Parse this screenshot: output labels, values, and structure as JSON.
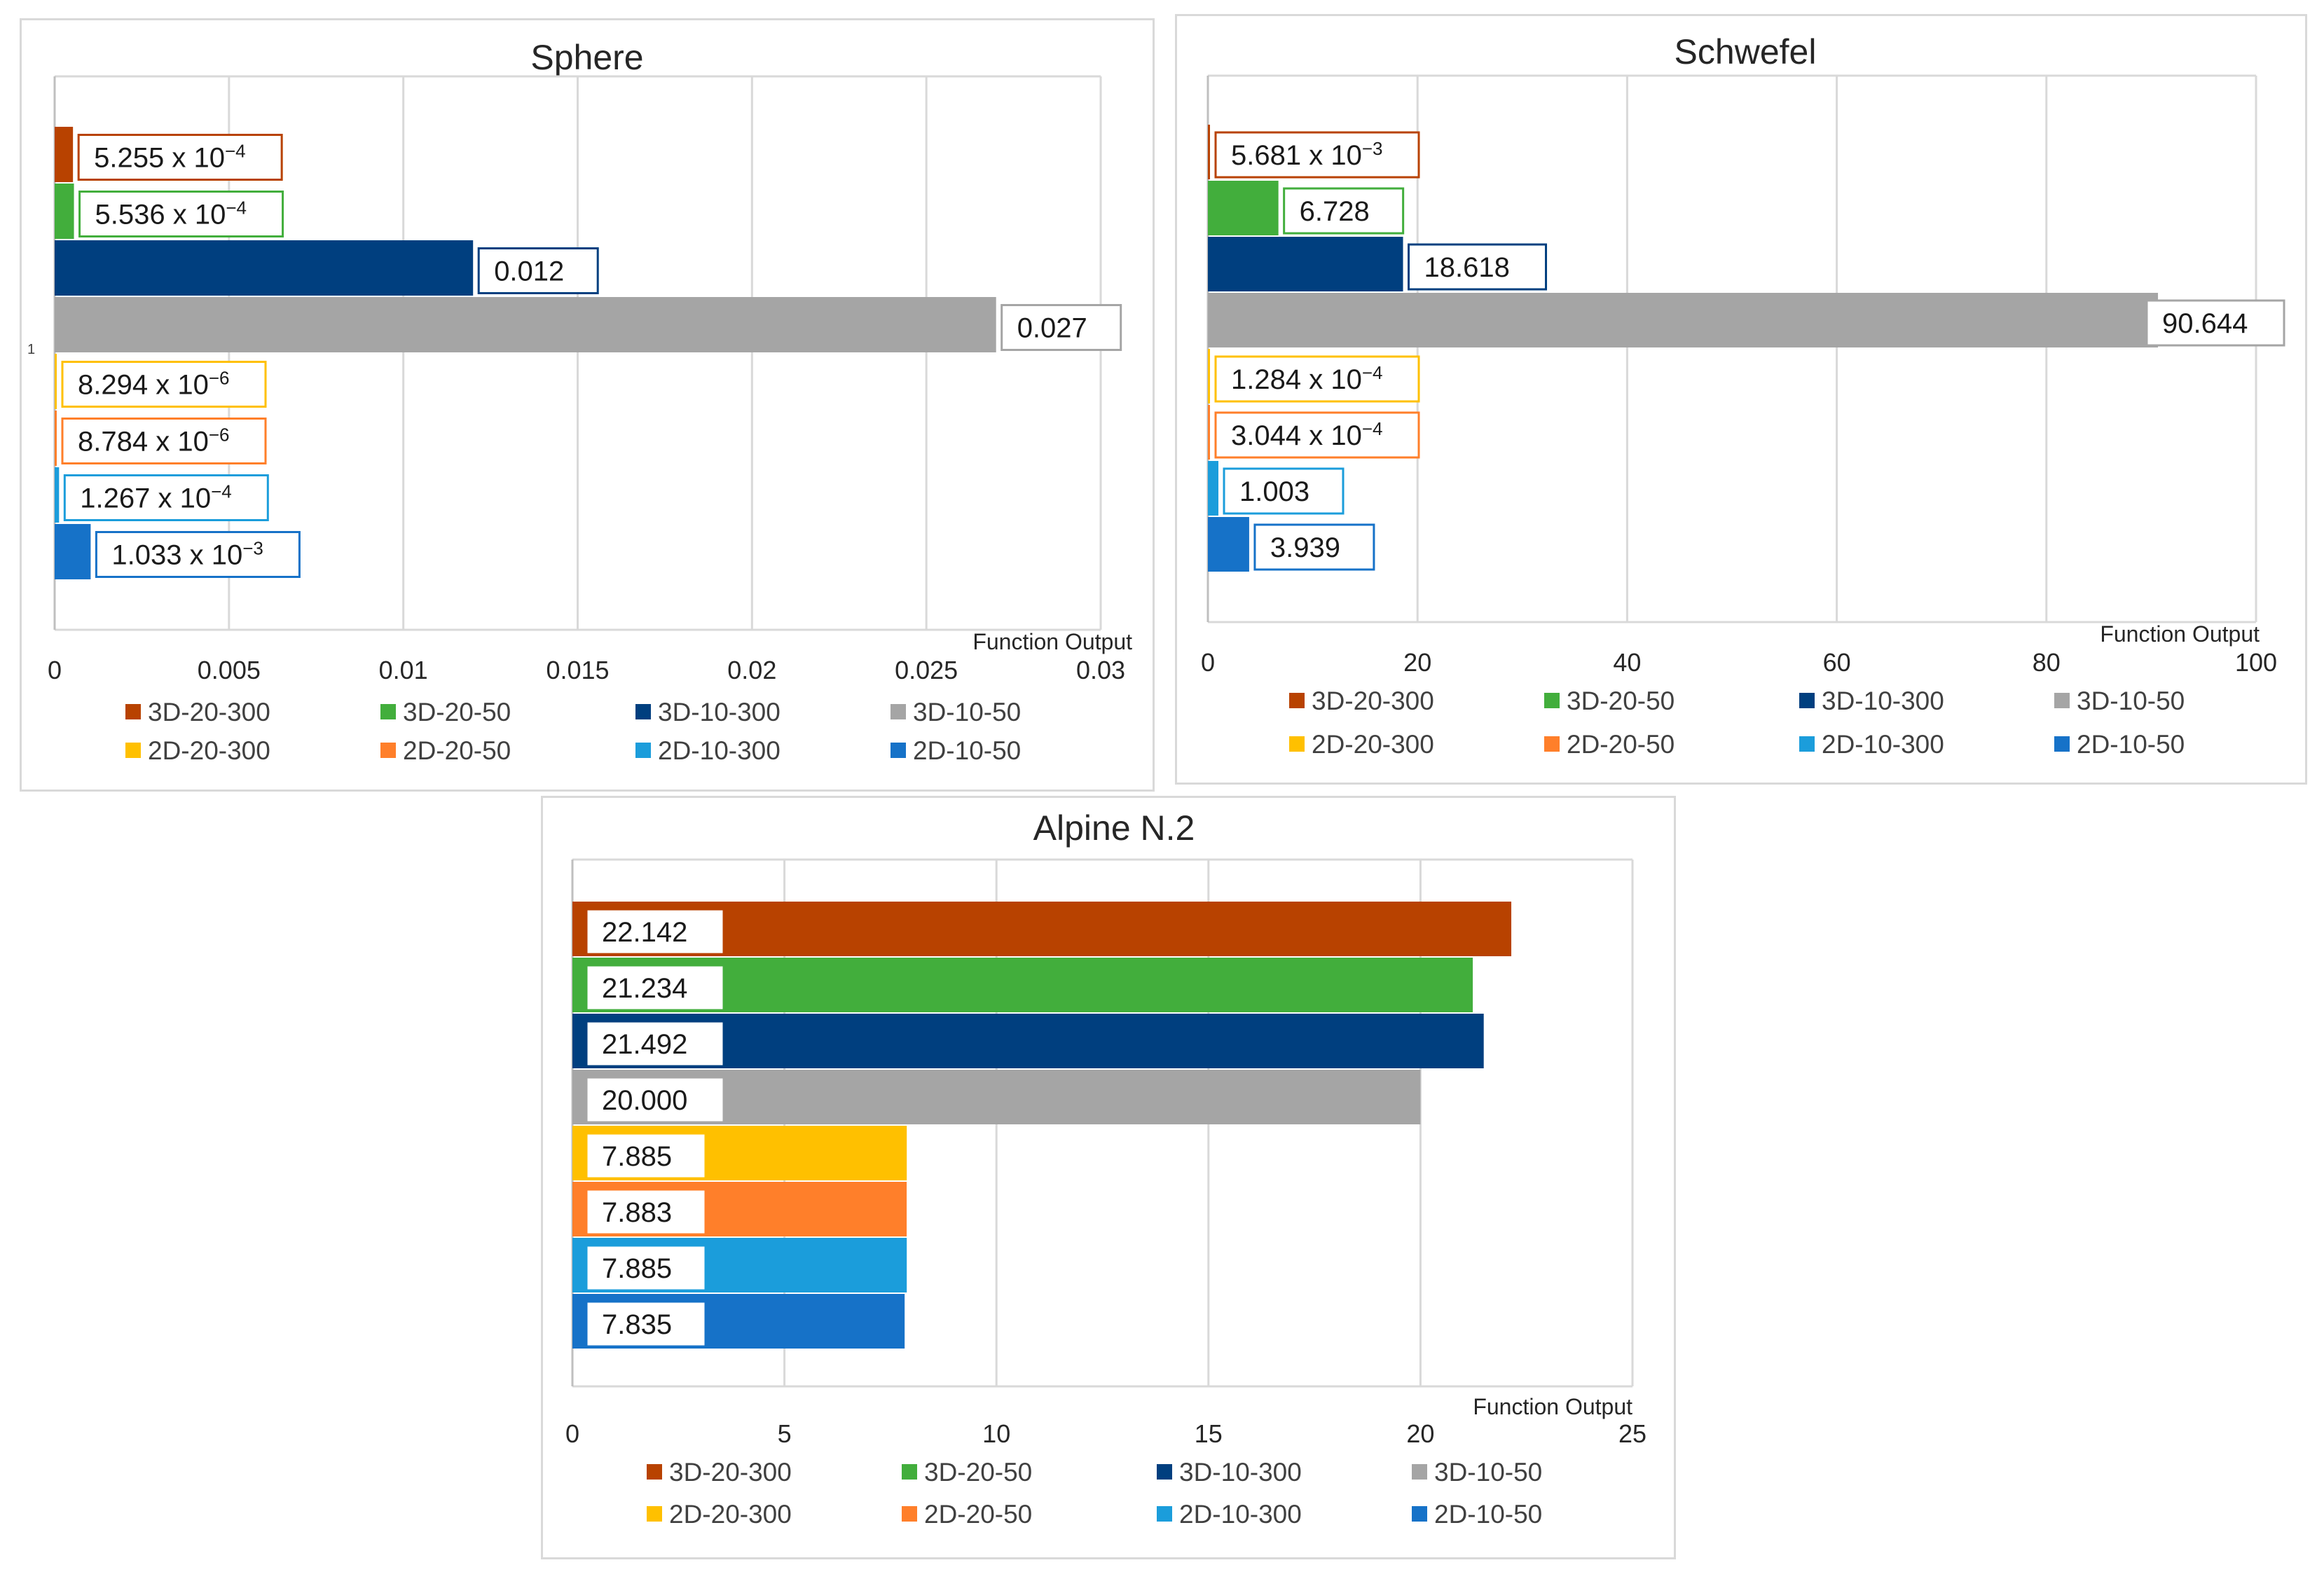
{
  "chart_data": [
    {
      "type": "bar",
      "orientation": "horizontal",
      "title": "Sphere",
      "xlabel": "Function Output",
      "ylabel": "",
      "categories": [
        "1"
      ],
      "xlim": [
        0,
        0.03
      ],
      "xticks": [
        "0",
        "0.005",
        "0.01",
        "0.015",
        "0.02",
        "0.025",
        "0.03"
      ],
      "grid": true,
      "legend_position": "bottom",
      "series": [
        {
          "name": "3D-20-300",
          "color": "#B84200",
          "value": 0.0005255,
          "label": "5.255 x 10",
          "label_exp": "−4"
        },
        {
          "name": "3D-20-50",
          "color": "#42AE3C",
          "value": 0.0005536,
          "label": "5.536 x 10",
          "label_exp": "−4"
        },
        {
          "name": "3D-10-300",
          "color": "#003F7F",
          "value": 0.012,
          "label": "0.012",
          "label_exp": ""
        },
        {
          "name": "3D-10-50",
          "color": "#A5A5A5",
          "value": 0.027,
          "label": "0.027",
          "label_exp": ""
        },
        {
          "name": "2D-20-300",
          "color": "#FFC000",
          "value": 8.294e-06,
          "label": "8.294 x 10",
          "label_exp": "−6"
        },
        {
          "name": "2D-20-50",
          "color": "#FF7F2A",
          "value": 8.784e-06,
          "label": "8.784 x 10",
          "label_exp": "−6"
        },
        {
          "name": "2D-10-300",
          "color": "#1B9DDB",
          "value": 0.0001267,
          "label": "1.267 x 10",
          "label_exp": "−4"
        },
        {
          "name": "2D-10-50",
          "color": "#1672C8",
          "value": 0.001033,
          "label": "1.033 x 10",
          "label_exp": "−3"
        }
      ]
    },
    {
      "type": "bar",
      "orientation": "horizontal",
      "title": "Schwefel",
      "xlabel": "Function Output",
      "ylabel": "",
      "categories": [],
      "xlim": [
        0,
        100
      ],
      "xticks": [
        "0",
        "20",
        "40",
        "60",
        "80",
        "100"
      ],
      "grid": true,
      "legend_position": "bottom",
      "series": [
        {
          "name": "3D-20-300",
          "color": "#B84200",
          "value": 0.005681,
          "label": "5.681 x 10",
          "label_exp": "−3"
        },
        {
          "name": "3D-20-50",
          "color": "#42AE3C",
          "value": 6.728,
          "label": "6.728",
          "label_exp": ""
        },
        {
          "name": "3D-10-300",
          "color": "#003F7F",
          "value": 18.618,
          "label": "18.618",
          "label_exp": ""
        },
        {
          "name": "3D-10-50",
          "color": "#A5A5A5",
          "value": 90.644,
          "label": "90.644",
          "label_exp": ""
        },
        {
          "name": "2D-20-300",
          "color": "#FFC000",
          "value": 0.0001284,
          "label": "1.284 x 10",
          "label_exp": "−4"
        },
        {
          "name": "2D-20-50",
          "color": "#FF7F2A",
          "value": 0.0003044,
          "label": "3.044 x 10",
          "label_exp": "−4"
        },
        {
          "name": "2D-10-300",
          "color": "#1B9DDB",
          "value": 1.003,
          "label": "1.003",
          "label_exp": ""
        },
        {
          "name": "2D-10-50",
          "color": "#1672C8",
          "value": 3.939,
          "label": "3.939",
          "label_exp": ""
        }
      ]
    },
    {
      "type": "bar",
      "orientation": "horizontal",
      "title": "Alpine N.2",
      "xlabel": "Function Output",
      "ylabel": "",
      "categories": [],
      "xlim": [
        0,
        25
      ],
      "xticks": [
        "0",
        "5",
        "10",
        "15",
        "20",
        "25"
      ],
      "grid": true,
      "legend_position": "bottom",
      "series": [
        {
          "name": "3D-20-300",
          "color": "#B84200",
          "value": 22.142,
          "label": "22.142",
          "label_exp": ""
        },
        {
          "name": "3D-20-50",
          "color": "#42AE3C",
          "value": 21.234,
          "label": "21.234",
          "label_exp": ""
        },
        {
          "name": "3D-10-300",
          "color": "#003F7F",
          "value": 21.492,
          "label": "21.492",
          "label_exp": ""
        },
        {
          "name": "3D-10-50",
          "color": "#A5A5A5",
          "value": 20.0,
          "label": "20.000",
          "label_exp": ""
        },
        {
          "name": "2D-20-300",
          "color": "#FFC000",
          "value": 7.885,
          "label": "7.885",
          "label_exp": ""
        },
        {
          "name": "2D-20-50",
          "color": "#FF7F2A",
          "value": 7.883,
          "label": "7.883",
          "label_exp": ""
        },
        {
          "name": "2D-10-300",
          "color": "#1B9DDB",
          "value": 7.885,
          "label": "7.885",
          "label_exp": ""
        },
        {
          "name": "2D-10-50",
          "color": "#1672C8",
          "value": 7.835,
          "label": "7.835",
          "label_exp": ""
        }
      ]
    }
  ]
}
